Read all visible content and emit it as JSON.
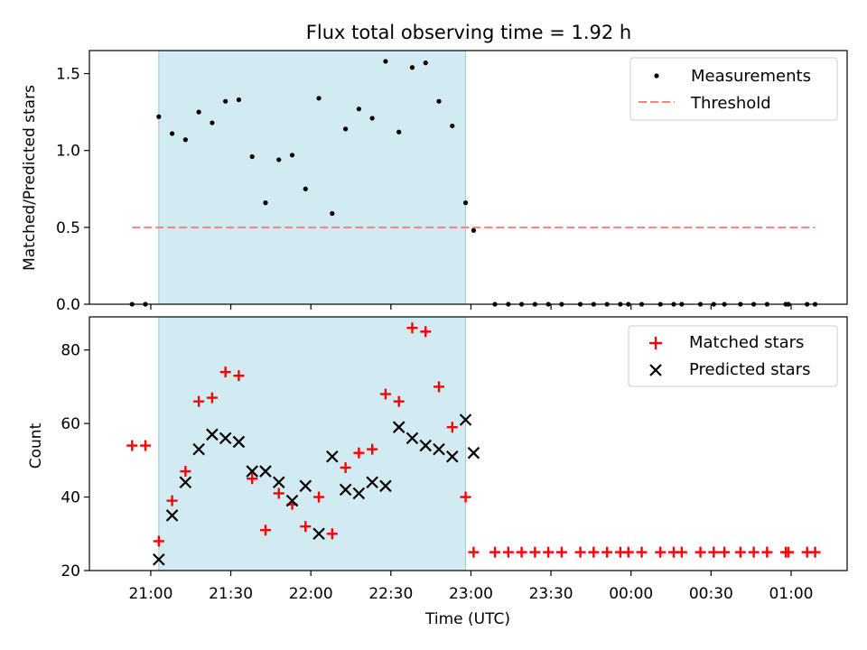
{
  "chart_data": [
    {
      "type": "scatter",
      "title": "Flux total observing time = 1.92 h",
      "xlabel": "",
      "ylabel": "Matched/Predicted stars",
      "ylim": [
        0.0,
        1.65
      ],
      "yticks": [
        0.0,
        0.5,
        1.0,
        1.5
      ],
      "ytick_labels": [
        "0.0",
        "0.5",
        "1.0",
        "1.5"
      ],
      "xtick_labels_shown": false,
      "highlight": {
        "x_start_min": 1263,
        "x_end_min": 1378,
        "color": "#add8e6"
      },
      "legend": {
        "placement": "top-right",
        "entries": [
          "Measurements",
          "Threshold"
        ]
      },
      "series": [
        {
          "name": "Measurements",
          "marker": "dot",
          "color": "#000000",
          "x": [
            1253,
            1258,
            1263,
            1268,
            1273,
            1278,
            1283,
            1288,
            1293,
            1298,
            1303,
            1308,
            1313,
            1318,
            1323,
            1328,
            1333,
            1338,
            1343,
            1348,
            1353,
            1358,
            1363,
            1368,
            1373,
            1378,
            1381,
            1389,
            1394,
            1399,
            1404,
            1409,
            1414,
            1421,
            1426,
            1431,
            1436,
            1439,
            1444,
            1451,
            1456,
            1459,
            1466,
            1471,
            1475,
            1481,
            1486,
            1491,
            1498,
            1499,
            1506,
            1509
          ],
          "y": [
            0.0,
            0.0,
            1.22,
            1.11,
            1.07,
            1.25,
            1.18,
            1.32,
            1.33,
            0.96,
            0.66,
            0.94,
            0.97,
            0.75,
            1.34,
            0.59,
            1.14,
            1.27,
            1.21,
            1.58,
            1.12,
            1.54,
            1.57,
            1.32,
            1.16,
            0.66,
            0.48,
            0.0,
            0.0,
            0.0,
            0.0,
            0.0,
            0.0,
            0.0,
            0.0,
            0.0,
            0.0,
            0.0,
            0.0,
            0.0,
            0.0,
            0.0,
            0.0,
            0.0,
            0.0,
            0.0,
            0.0,
            0.0,
            0.0,
            0.0,
            0.0,
            0.0
          ]
        },
        {
          "name": "Threshold",
          "style": "dashed",
          "color": "#ff7f7f",
          "x": [
            1253,
            1509
          ],
          "y": [
            0.5,
            0.5
          ]
        }
      ]
    },
    {
      "type": "scatter",
      "title": "",
      "xlabel": "Time (UTC)",
      "ylabel": "Count",
      "ylim": [
        20,
        89
      ],
      "yticks": [
        20,
        40,
        60,
        80
      ],
      "ytick_labels": [
        "20",
        "40",
        "60",
        "80"
      ],
      "xlim_min": [
        1237,
        1521
      ],
      "xticks_min": [
        1260,
        1290,
        1320,
        1350,
        1380,
        1410,
        1440,
        1470,
        1500
      ],
      "xtick_labels": [
        "21:00",
        "21:30",
        "22:00",
        "22:30",
        "23:00",
        "23:30",
        "00:00",
        "00:30",
        "01:00"
      ],
      "highlight": {
        "x_start_min": 1263,
        "x_end_min": 1378,
        "color": "#add8e6"
      },
      "legend": {
        "placement": "top-right",
        "entries": [
          "Matched stars",
          "Predicted stars"
        ]
      },
      "series": [
        {
          "name": "Matched stars",
          "marker": "plus",
          "color": "#ff0000",
          "x": [
            1253,
            1258,
            1263,
            1268,
            1273,
            1278,
            1283,
            1288,
            1293,
            1298,
            1303,
            1308,
            1313,
            1318,
            1323,
            1328,
            1333,
            1338,
            1343,
            1348,
            1353,
            1358,
            1363,
            1368,
            1373,
            1378,
            1381,
            1389,
            1394,
            1399,
            1404,
            1409,
            1414,
            1421,
            1426,
            1431,
            1436,
            1439,
            1444,
            1451,
            1456,
            1459,
            1466,
            1471,
            1475,
            1481,
            1486,
            1491,
            1498,
            1499,
            1506,
            1509
          ],
          "y": [
            54,
            54,
            28,
            39,
            47,
            66,
            67,
            74,
            73,
            45,
            31,
            41,
            38,
            32,
            40,
            30,
            48,
            52,
            53,
            68,
            66,
            86,
            85,
            70,
            59,
            40,
            25,
            25,
            25,
            25,
            25,
            25,
            25,
            25,
            25,
            25,
            25,
            25,
            25,
            25,
            25,
            25,
            25,
            25,
            25,
            25,
            25,
            25,
            25,
            25,
            25,
            25
          ]
        },
        {
          "name": "Predicted stars",
          "marker": "x",
          "color": "#000000",
          "x": [
            1263,
            1268,
            1273,
            1278,
            1283,
            1288,
            1293,
            1298,
            1303,
            1308,
            1313,
            1318,
            1323,
            1328,
            1333,
            1338,
            1343,
            1348,
            1353,
            1358,
            1363,
            1368,
            1373,
            1378,
            1381
          ],
          "y": [
            23,
            35,
            44,
            53,
            57,
            56,
            55,
            47,
            47,
            44,
            39,
            43,
            30,
            51,
            42,
            41,
            44,
            43,
            59,
            56,
            54,
            53,
            51,
            61,
            52
          ]
        }
      ]
    }
  ]
}
